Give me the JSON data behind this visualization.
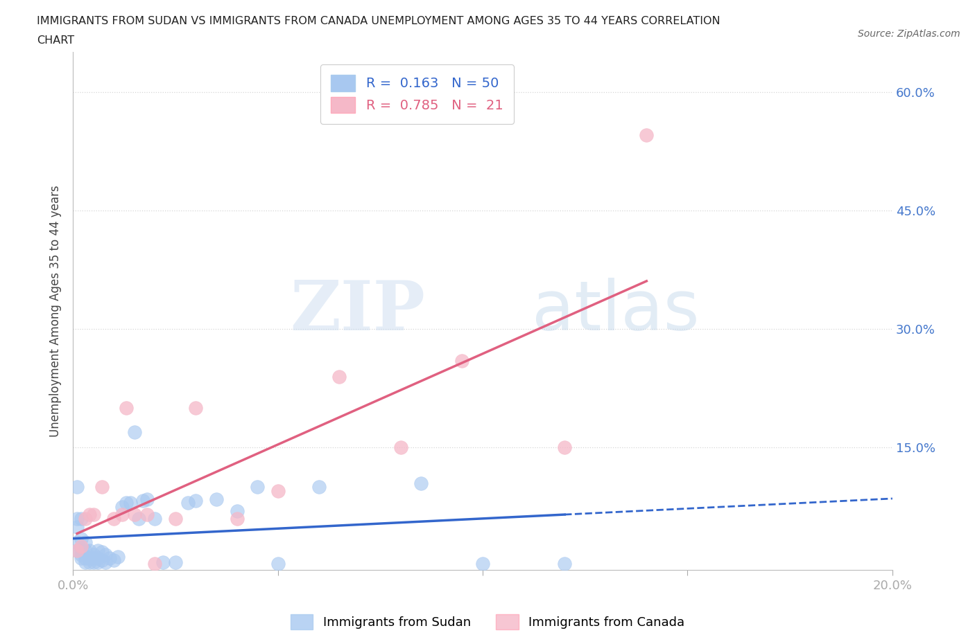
{
  "title_line1": "IMMIGRANTS FROM SUDAN VS IMMIGRANTS FROM CANADA UNEMPLOYMENT AMONG AGES 35 TO 44 YEARS CORRELATION",
  "title_line2": "CHART",
  "source": "Source: ZipAtlas.com",
  "ylabel": "Unemployment Among Ages 35 to 44 years",
  "sudan_R": 0.163,
  "sudan_N": 50,
  "canada_R": 0.785,
  "canada_N": 21,
  "sudan_color": "#a8c8f0",
  "canada_color": "#f5b8c8",
  "sudan_line_color": "#3366cc",
  "canada_line_color": "#e06080",
  "background_color": "#ffffff",
  "xlim": [
    0.0,
    0.2
  ],
  "ylim": [
    -0.005,
    0.65
  ],
  "yticks": [
    0.15,
    0.3,
    0.45,
    0.6
  ],
  "ytick_labels": [
    "15.0%",
    "30.0%",
    "45.0%",
    "60.0%"
  ],
  "xticks": [
    0.0,
    0.05,
    0.1,
    0.15,
    0.2
  ],
  "xtick_labels": [
    "0.0%",
    "",
    "",
    "",
    "20.0%"
  ],
  "watermark_zip": "ZIP",
  "watermark_atlas": "atlas",
  "sudan_x": [
    0.001,
    0.001,
    0.001,
    0.001,
    0.001,
    0.002,
    0.002,
    0.002,
    0.002,
    0.002,
    0.003,
    0.003,
    0.003,
    0.003,
    0.004,
    0.004,
    0.004,
    0.005,
    0.005,
    0.005,
    0.006,
    0.006,
    0.006,
    0.007,
    0.007,
    0.008,
    0.008,
    0.009,
    0.01,
    0.011,
    0.012,
    0.013,
    0.014,
    0.015,
    0.016,
    0.017,
    0.018,
    0.02,
    0.022,
    0.025,
    0.028,
    0.03,
    0.035,
    0.04,
    0.045,
    0.05,
    0.06,
    0.085,
    0.1,
    0.12
  ],
  "sudan_y": [
    0.02,
    0.03,
    0.05,
    0.06,
    0.1,
    0.01,
    0.015,
    0.02,
    0.035,
    0.06,
    0.005,
    0.01,
    0.02,
    0.03,
    0.005,
    0.01,
    0.02,
    0.005,
    0.01,
    0.015,
    0.005,
    0.01,
    0.02,
    0.008,
    0.018,
    0.005,
    0.015,
    0.01,
    0.008,
    0.012,
    0.075,
    0.08,
    0.08,
    0.17,
    0.06,
    0.083,
    0.085,
    0.06,
    0.005,
    0.005,
    0.08,
    0.083,
    0.085,
    0.07,
    0.1,
    0.003,
    0.1,
    0.105,
    0.003,
    0.003
  ],
  "canada_x": [
    0.001,
    0.002,
    0.003,
    0.004,
    0.005,
    0.007,
    0.01,
    0.012,
    0.013,
    0.015,
    0.018,
    0.02,
    0.025,
    0.03,
    0.04,
    0.05,
    0.065,
    0.08,
    0.095,
    0.12,
    0.14
  ],
  "canada_y": [
    0.02,
    0.025,
    0.06,
    0.065,
    0.065,
    0.1,
    0.06,
    0.065,
    0.2,
    0.065,
    0.065,
    0.003,
    0.06,
    0.2,
    0.06,
    0.095,
    0.24,
    0.15,
    0.26,
    0.15,
    0.545
  ]
}
